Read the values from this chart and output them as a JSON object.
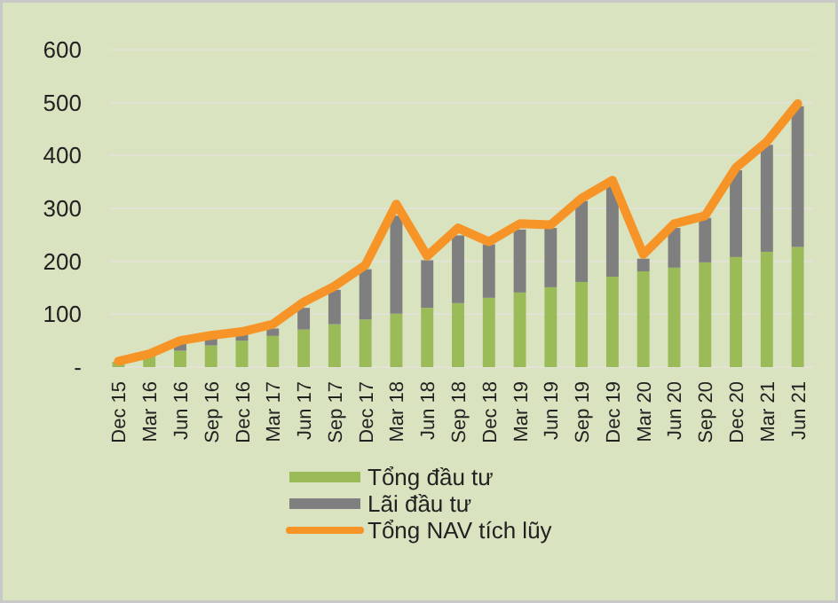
{
  "chart_data": {
    "type": "bar",
    "stacked": true,
    "categories": [
      "Dec 15",
      "Mar 16",
      "Jun 16",
      "Sep 16",
      "Dec 16",
      "Mar 17",
      "Jun 17",
      "Sep 17",
      "Dec 17",
      "Mar 18",
      "Jun 18",
      "Sep 18",
      "Dec 18",
      "Mar 19",
      "Jun 19",
      "Sep 19",
      "Dec 19",
      "Mar 20",
      "Jun 20",
      "Sep 20",
      "Dec 20",
      "Mar 21",
      "Jun 21"
    ],
    "series": [
      {
        "name": "Tổng đầu tư",
        "color": "#9bbb59",
        "values": [
          10,
          22,
          31,
          41,
          50,
          59,
          71,
          81,
          90,
          101,
          112,
          121,
          131,
          141,
          151,
          161,
          171,
          181,
          188,
          198,
          208,
          218,
          227
        ]
      },
      {
        "name": "Lãi đầu tư",
        "color": "#7f7f7f",
        "values": [
          null,
          null,
          14,
          13,
          12,
          14,
          41,
          65,
          95,
          185,
          90,
          128,
          101,
          119,
          112,
          153,
          171,
          24,
          75,
          84,
          164,
          202,
          266
        ]
      },
      {
        "name": "Tổng NAV tích lũy",
        "type": "line",
        "color": "#f79428",
        "values": [
          11,
          25,
          50,
          60,
          67,
          81,
          123,
          153,
          193,
          308,
          210,
          263,
          237,
          271,
          269,
          319,
          353,
          213,
          271,
          286,
          377,
          426,
          498
        ]
      }
    ],
    "ylim": [
      0,
      600
    ],
    "yticks": [
      {
        "value": 0,
        "label": "-"
      },
      100,
      200,
      300,
      400,
      500,
      600
    ],
    "grid": "y",
    "legend": "bottom"
  }
}
